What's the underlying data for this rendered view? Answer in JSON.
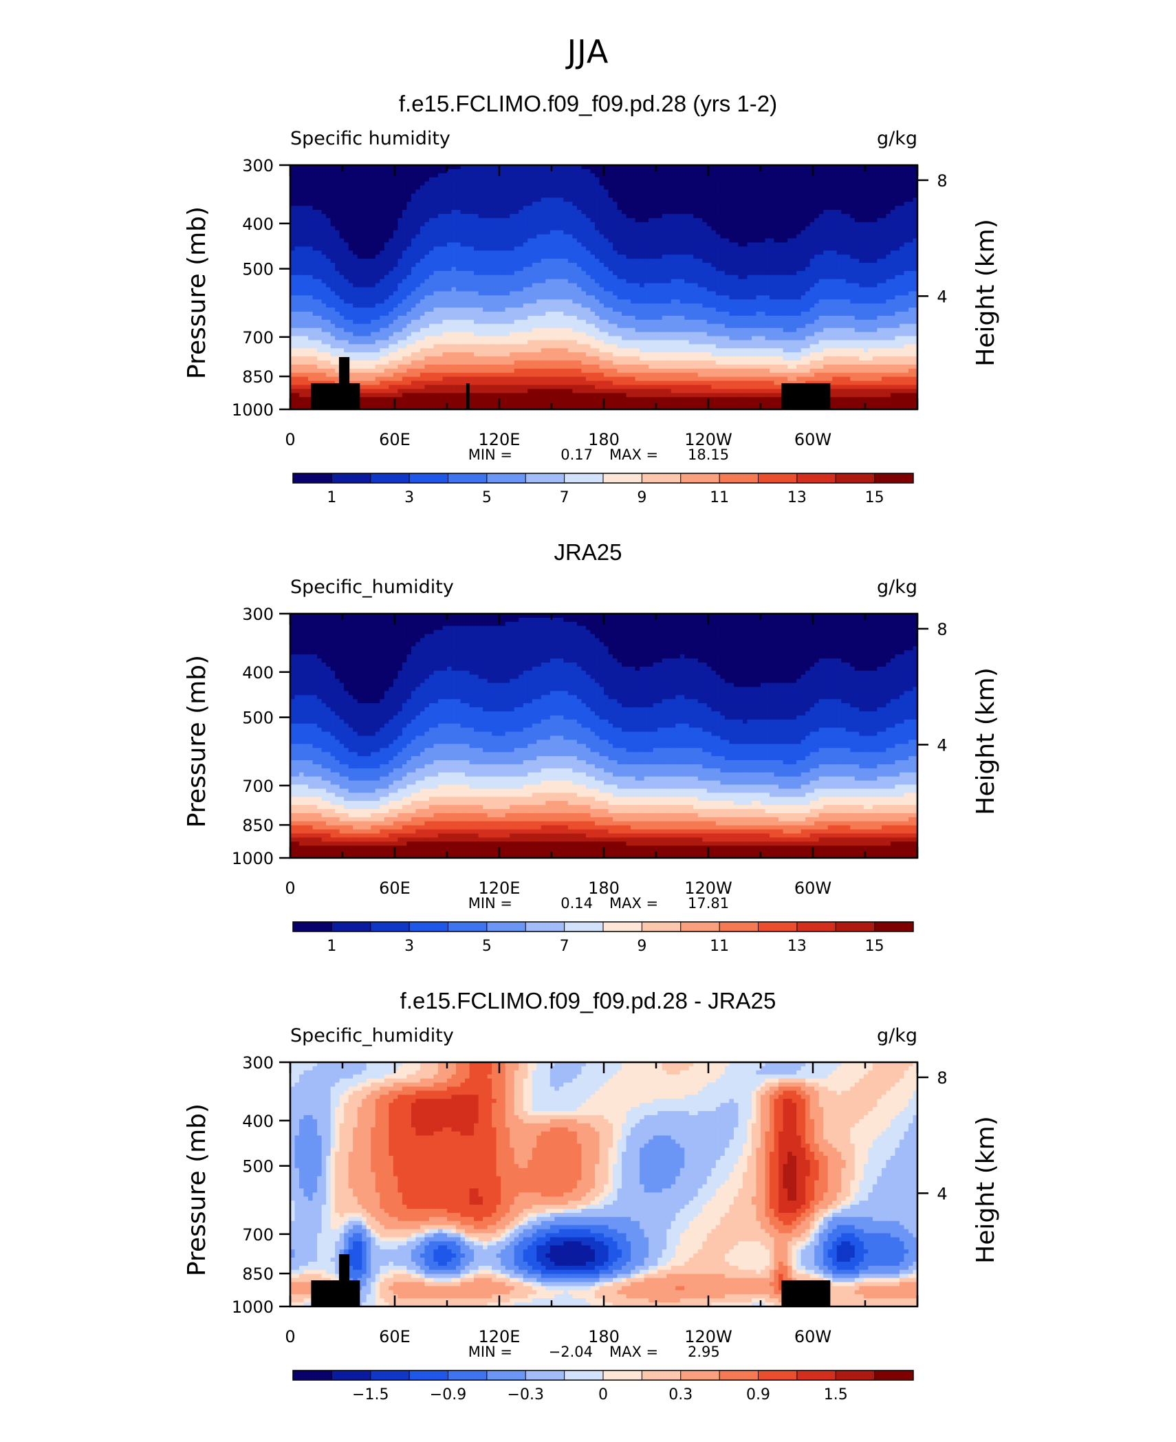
{
  "figure": {
    "title": "JJA"
  },
  "palette": {
    "blue_to_red": [
      "#08006b",
      "#0a1ba0",
      "#0f37c8",
      "#1f57e8",
      "#3f74f0",
      "#6c96f5",
      "#a1bcf8",
      "#d2e2fb",
      "#fde6d6",
      "#fdc7ad",
      "#fba07e",
      "#f57a53",
      "#ea4e2c",
      "#d42e1d",
      "#ae1910",
      "#7f0000"
    ],
    "land": "#000000"
  },
  "chart_data": [
    {
      "type": "heatmap",
      "title": "f.e15.FCLIMO.f09_f09.pd.28 (yrs 1-2)",
      "left_label": "Specific humidity",
      "right_label": "g/kg",
      "ylabel": "Pressure (mb)",
      "ylabel_right": "Height (km)",
      "y_ticks": [
        "300",
        "400",
        "500",
        "700",
        "850",
        "1000"
      ],
      "y_ticks_right": [
        "8",
        "4"
      ],
      "x_ticks": [
        "0",
        "60E",
        "120E",
        "180",
        "120W",
        "60W"
      ],
      "stats": {
        "min_label": "MIN =",
        "min": "0.17",
        "max_label": "MAX =",
        "max": "18.15"
      },
      "colorbar_labels": [
        "1",
        "3",
        "5",
        "7",
        "9",
        "11",
        "13",
        "15"
      ],
      "contour_levels": [
        1,
        2,
        3,
        4,
        5,
        6,
        7,
        8,
        9,
        10,
        11,
        12,
        13,
        14,
        15
      ],
      "xlim": [
        0,
        360
      ],
      "ylim_pressure": [
        1000,
        300
      ],
      "field_kind": "model"
    },
    {
      "type": "heatmap",
      "title": "JRA25",
      "left_label": "Specific_humidity",
      "right_label": "g/kg",
      "ylabel": "Pressure (mb)",
      "ylabel_right": "Height (km)",
      "y_ticks": [
        "300",
        "400",
        "500",
        "700",
        "850",
        "1000"
      ],
      "y_ticks_right": [
        "8",
        "4"
      ],
      "x_ticks": [
        "0",
        "60E",
        "120E",
        "180",
        "120W",
        "60W"
      ],
      "stats": {
        "min_label": "MIN =",
        "min": "0.14",
        "max_label": "MAX =",
        "max": "17.81"
      },
      "colorbar_labels": [
        "1",
        "3",
        "5",
        "7",
        "9",
        "11",
        "13",
        "15"
      ],
      "contour_levels": [
        1,
        2,
        3,
        4,
        5,
        6,
        7,
        8,
        9,
        10,
        11,
        12,
        13,
        14,
        15
      ],
      "xlim": [
        0,
        360
      ],
      "ylim_pressure": [
        1000,
        300
      ],
      "field_kind": "obs"
    },
    {
      "type": "heatmap",
      "title": "f.e15.FCLIMO.f09_f09.pd.28 - JRA25",
      "left_label": "Specific_humidity",
      "right_label": "g/kg",
      "ylabel": "Pressure (mb)",
      "ylabel_right": "Height (km)",
      "y_ticks": [
        "300",
        "400",
        "500",
        "700",
        "850",
        "1000"
      ],
      "y_ticks_right": [
        "8",
        "4"
      ],
      "x_ticks": [
        "0",
        "60E",
        "120E",
        "180",
        "120W",
        "60W"
      ],
      "stats": {
        "min_label": "MIN =",
        "min": "−2.04",
        "max_label": "MAX =",
        "max": "2.95"
      },
      "colorbar_labels": [
        "−1.5",
        "−0.9",
        "−0.3",
        "0",
        "0.3",
        "0.9",
        "1.5"
      ],
      "contour_levels": [
        -1.8,
        -1.5,
        -1.2,
        -0.9,
        -0.6,
        -0.3,
        -0.1,
        0,
        0.1,
        0.3,
        0.6,
        0.9,
        1.2,
        1.5,
        1.8
      ],
      "xlim": [
        0,
        360
      ],
      "ylim_pressure": [
        1000,
        300
      ],
      "field_kind": "diff"
    }
  ]
}
